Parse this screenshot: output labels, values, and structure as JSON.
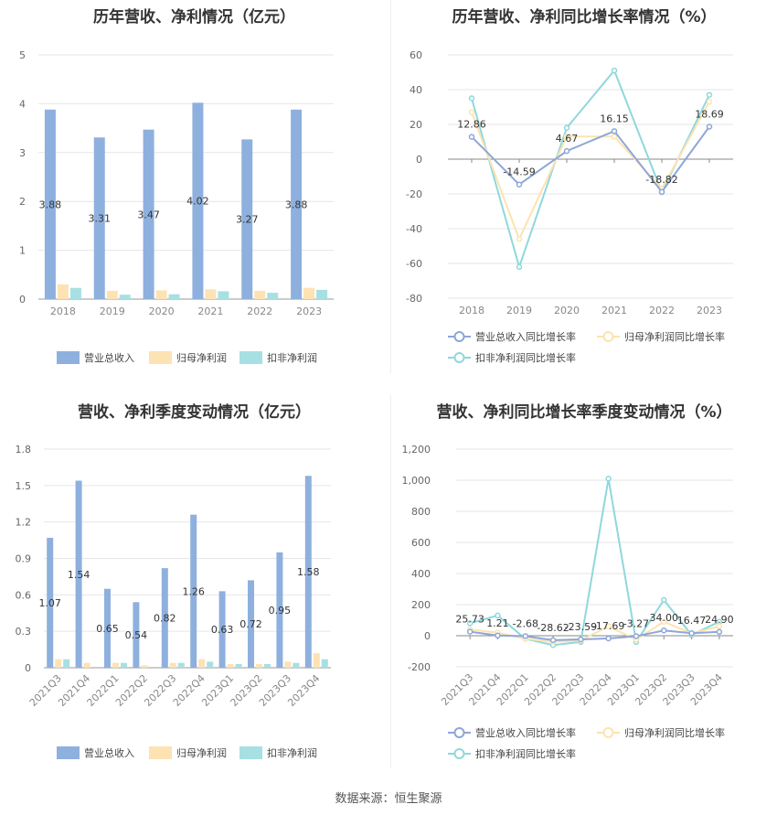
{
  "footer": "数据来源：恒生聚源",
  "colors": {
    "revenue": "#8eb0de",
    "parent_profit": "#fde2b4",
    "non_profit": "#a7e0e2",
    "revenue_line": "#8ea6d8",
    "parent_line": "#fce3b0",
    "non_line": "#8fd8dc"
  },
  "chart_data": [
    {
      "type": "bar",
      "title": "历年营收、净利情况（亿元）",
      "categories": [
        "2018",
        "2019",
        "2020",
        "2021",
        "2022",
        "2023"
      ],
      "series": [
        {
          "name": "营业总收入",
          "values": [
            3.88,
            3.31,
            3.47,
            4.02,
            3.27,
            3.88
          ],
          "labels": [
            "3.88",
            "3.31",
            "3.47",
            "4.02",
            "3.27",
            "3.88"
          ]
        },
        {
          "name": "归母净利润",
          "values": [
            0.3,
            0.17,
            0.18,
            0.2,
            0.17,
            0.23
          ]
        },
        {
          "name": "扣非净利润",
          "values": [
            0.23,
            0.09,
            0.1,
            0.16,
            0.13,
            0.19
          ]
        }
      ],
      "ylim": [
        0,
        5
      ],
      "yticks": [
        "0",
        "1",
        "2",
        "3",
        "4",
        "5"
      ],
      "grid": true,
      "legend": "bottom"
    },
    {
      "type": "line",
      "title": "历年营收、净利同比增长率情况（%）",
      "categories": [
        "2018",
        "2019",
        "2020",
        "2021",
        "2022",
        "2023"
      ],
      "series": [
        {
          "name": "营业总收入同比增长率",
          "values": [
            12.86,
            -14.59,
            4.67,
            16.15,
            -18.82,
            18.69
          ],
          "labels": [
            "12.86",
            "-14.59",
            "4.67",
            "16.15",
            "-18.82",
            "18.69"
          ]
        },
        {
          "name": "归母净利润同比增长率",
          "values": [
            27,
            -46,
            13,
            13,
            -17,
            33
          ]
        },
        {
          "name": "扣非净利润同比增长率",
          "values": [
            35,
            -62,
            18,
            51,
            -19,
            37
          ]
        }
      ],
      "ylim": [
        -80,
        60
      ],
      "yticks": [
        "60",
        "40",
        "20",
        "0",
        "-20",
        "-40",
        "-60",
        "-80"
      ],
      "grid": true,
      "legend": "bottom"
    },
    {
      "type": "bar",
      "title": "营收、净利季度变动情况（亿元）",
      "categories": [
        "2021Q3",
        "2021Q4",
        "2022Q1",
        "2022Q2",
        "2022Q3",
        "2022Q4",
        "2023Q1",
        "2023Q2",
        "2023Q3",
        "2023Q4"
      ],
      "series": [
        {
          "name": "营业总收入",
          "values": [
            1.07,
            1.54,
            0.65,
            0.54,
            0.82,
            1.26,
            0.63,
            0.72,
            0.95,
            1.58
          ],
          "labels": [
            "1.07",
            "1.54",
            "0.65",
            "0.54",
            "0.82",
            "1.26",
            "0.63",
            "0.72",
            "0.95",
            "1.58"
          ]
        },
        {
          "name": "归母净利润",
          "values": [
            0.07,
            0.04,
            0.04,
            0.02,
            0.04,
            0.07,
            0.03,
            0.03,
            0.05,
            0.12
          ]
        },
        {
          "name": "扣非净利润",
          "values": [
            0.07,
            0.0,
            0.04,
            0.0,
            0.04,
            0.05,
            0.03,
            0.03,
            0.04,
            0.07
          ]
        }
      ],
      "ylim": [
        0,
        1.8
      ],
      "yticks": [
        "0",
        "0.3",
        "0.6",
        "0.9",
        "1.2",
        "1.5",
        "1.8"
      ],
      "grid": true,
      "legend": "bottom"
    },
    {
      "type": "line",
      "title": "营收、净利同比增长率季度变动情况（%）",
      "categories": [
        "2021Q3",
        "2021Q4",
        "2022Q1",
        "2022Q2",
        "2022Q3",
        "2022Q4",
        "2023Q1",
        "2023Q2",
        "2023Q3",
        "2023Q4"
      ],
      "series": [
        {
          "name": "营业总收入同比增长率",
          "values": [
            25.73,
            1.21,
            -2.68,
            -28.62,
            -23.59,
            -17.69,
            -3.27,
            34.0,
            16.47,
            24.9
          ],
          "labels": [
            "25.73",
            "1.21",
            "-2.68",
            "-28.62",
            "-23.59",
            "-17.69",
            "-3.27",
            "34.00",
            "16.47",
            "24.90"
          ]
        },
        {
          "name": "归母净利润同比增长率",
          "values": [
            40,
            20,
            -20,
            -40,
            -30,
            60,
            -25,
            90,
            15,
            60
          ]
        },
        {
          "name": "扣非净利润同比增长率",
          "values": [
            80,
            130,
            -20,
            -60,
            -40,
            1010,
            -40,
            230,
            5,
            90
          ]
        }
      ],
      "ylim": [
        -200,
        1200
      ],
      "yticks": [
        "1,200",
        "1,000",
        "800",
        "600",
        "400",
        "200",
        "0",
        "-200"
      ],
      "grid": true,
      "legend": "bottom"
    }
  ]
}
